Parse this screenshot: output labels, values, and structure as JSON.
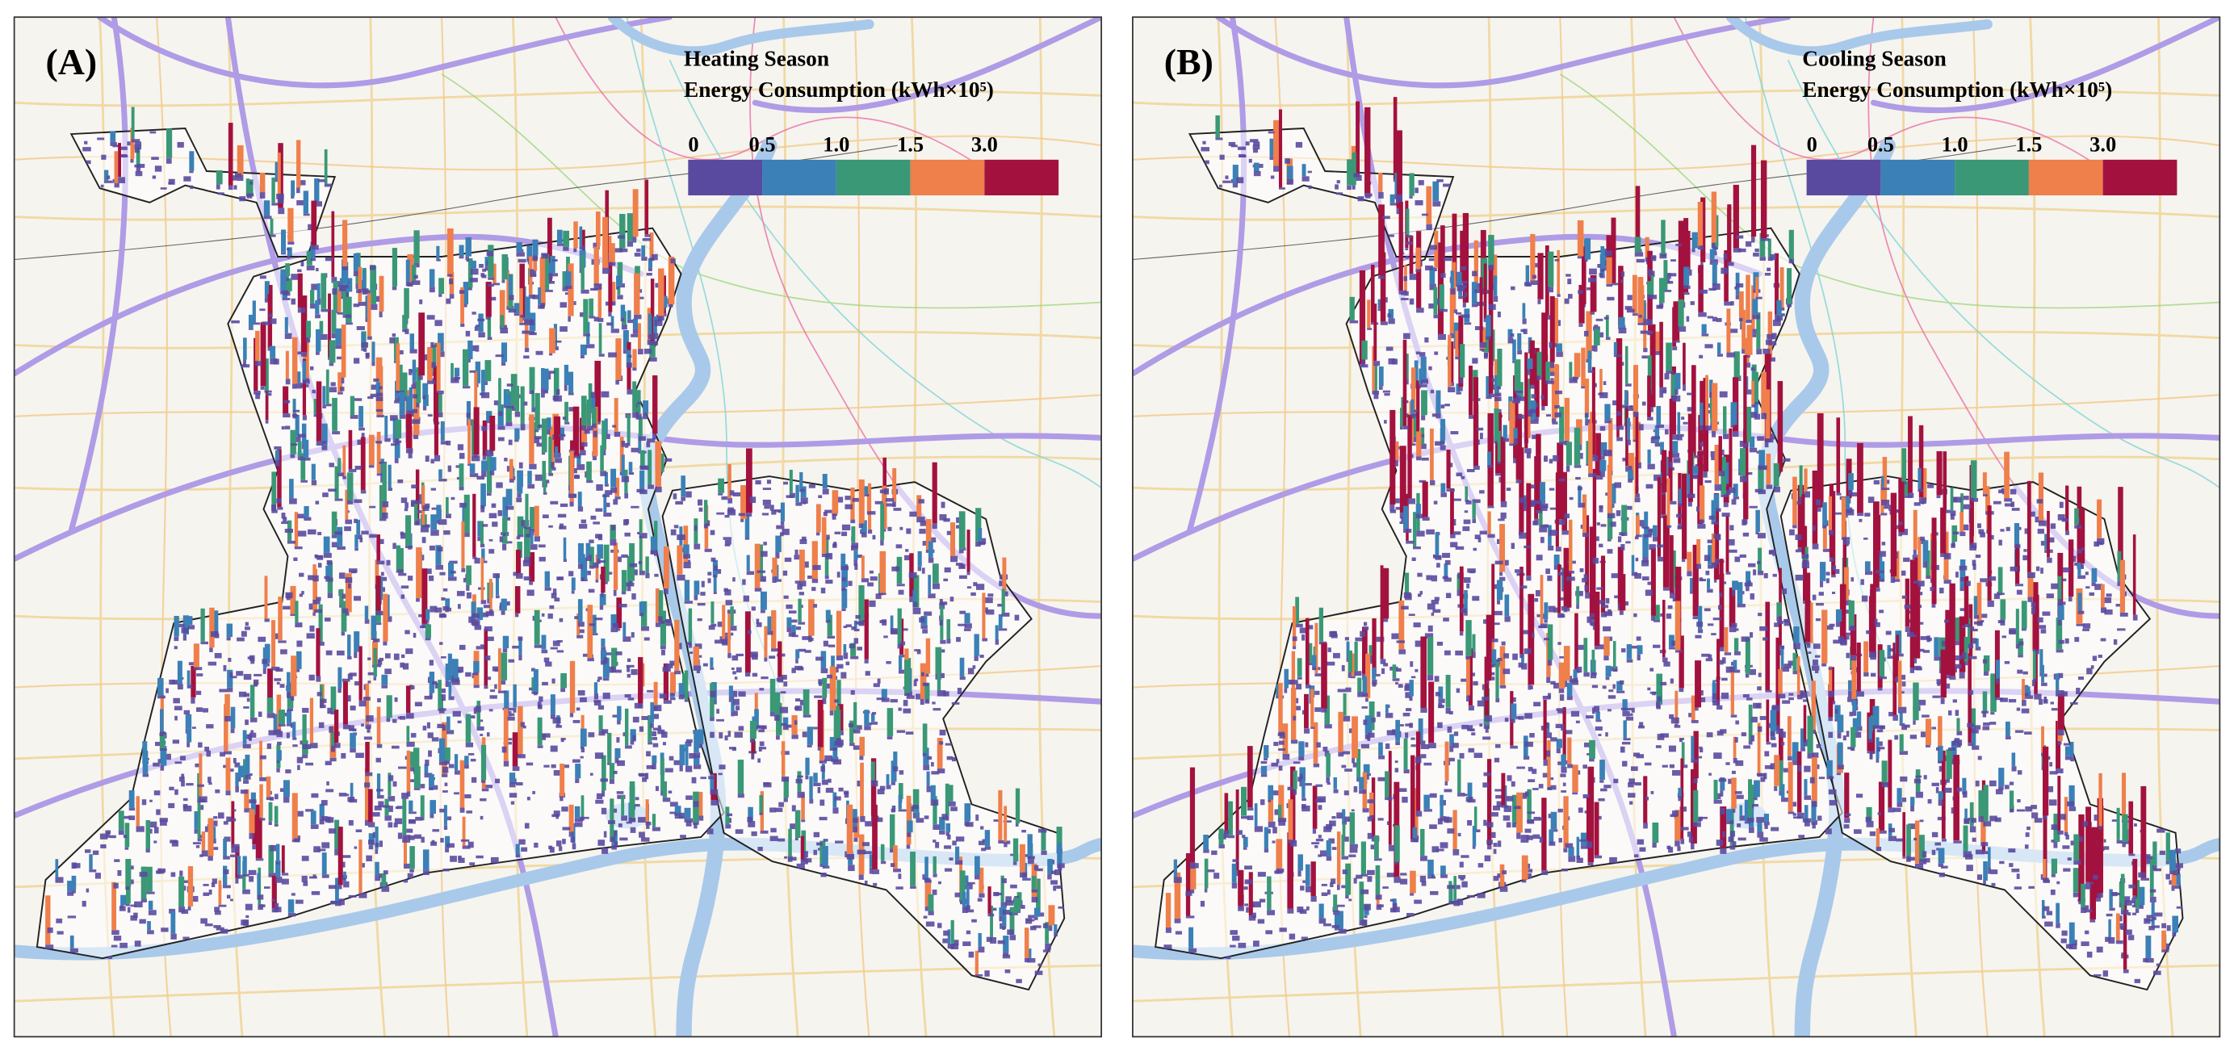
{
  "panels": [
    {
      "label": "(A)",
      "legend": {
        "title": "Heating Season",
        "subtitle": "Energy Consumption (kWh×10⁵)",
        "ticks": [
          "0",
          "0.5",
          "1.0",
          "1.5",
          "3.0"
        ],
        "colors": [
          "#5a4a9f",
          "#3b80b6",
          "#3a9877",
          "#ef7f4b",
          "#a3123f"
        ]
      }
    },
    {
      "label": "(B)",
      "legend": {
        "title": "Cooling Season",
        "subtitle": "Energy Consumption (kWh×10⁵)",
        "ticks": [
          "0",
          "0.5",
          "1.0",
          "1.5",
          "3.0"
        ],
        "colors": [
          "#5a4a9f",
          "#3b80b6",
          "#3a9877",
          "#ef7f4b",
          "#a3123f"
        ]
      }
    }
  ]
}
